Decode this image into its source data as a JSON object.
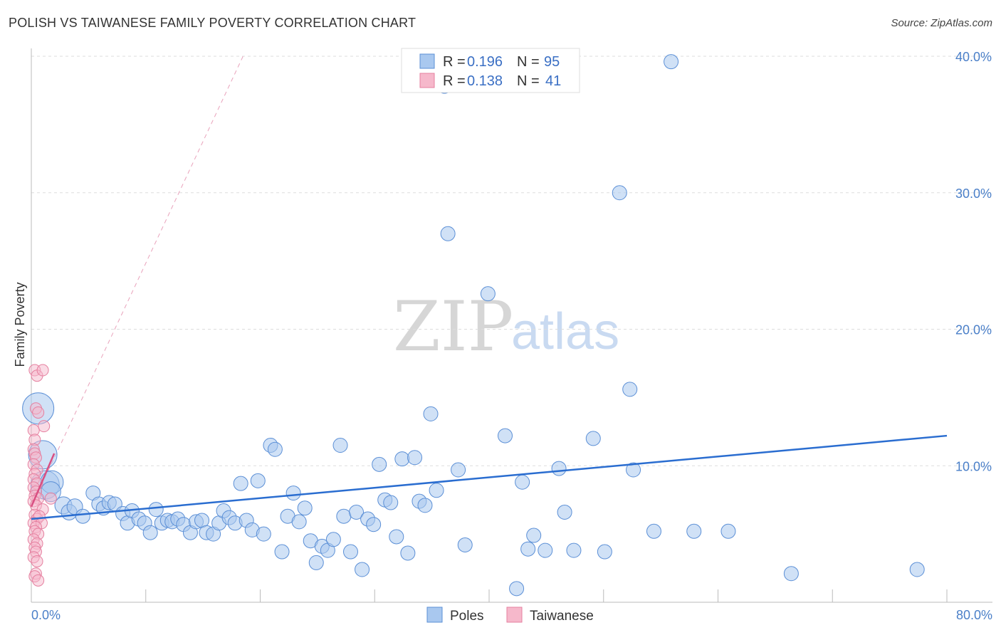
{
  "title": "POLISH VS TAIWANESE FAMILY POVERTY CORRELATION CHART",
  "source": "Source: ZipAtlas.com",
  "watermark": {
    "part1": "ZIP",
    "part2": "atlas"
  },
  "colors": {
    "poles_fill": "#a9c8ef",
    "poles_stroke": "#5b8fd6",
    "poles_line": "#2a6dd0",
    "taiwanese_fill": "#f6b8cb",
    "taiwanese_stroke": "#e57f9f",
    "taiwanese_line": "#d94f82",
    "grid": "#dddddd",
    "tick_label": "#4a7fc8"
  },
  "legend": {
    "rows": [
      {
        "r_label": "R = ",
        "r_value": "0.196",
        "n_label": "N = ",
        "n_value": "95",
        "series": "poles"
      },
      {
        "r_label": "R = ",
        "r_value": "0.138",
        "n_label": "N = ",
        "n_value": "41",
        "series": "taiwanese"
      }
    ]
  },
  "chart_data": {
    "type": "scatter",
    "title": "POLISH VS TAIWANESE FAMILY POVERTY CORRELATION CHART",
    "xlabel": "",
    "ylabel": "Family Poverty",
    "xlim": [
      0,
      80
    ],
    "ylim": [
      0,
      40
    ],
    "x_tick_labels": [
      "0.0%",
      "80.0%"
    ],
    "y_ticks": [
      10,
      20,
      30,
      40
    ],
    "y_tick_labels": [
      "10.0%",
      "20.0%",
      "30.0%",
      "40.0%"
    ],
    "grid": "horizontal dashed",
    "legend_position": "top-center and bottom",
    "series": [
      {
        "name": "Poles",
        "trend": {
          "x": [
            0,
            80
          ],
          "y": [
            6.1,
            12.2
          ]
        },
        "points": [
          [
            0.6,
            14.2
          ],
          [
            1.0,
            10.8
          ],
          [
            1.2,
            8.6
          ],
          [
            1.8,
            8.8
          ],
          [
            1.7,
            8.1
          ],
          [
            2.8,
            7.1
          ],
          [
            3.3,
            6.6
          ],
          [
            3.8,
            7.0
          ],
          [
            4.5,
            6.3
          ],
          [
            5.4,
            8.0
          ],
          [
            5.9,
            7.2
          ],
          [
            6.3,
            6.9
          ],
          [
            6.8,
            7.3
          ],
          [
            7.3,
            7.2
          ],
          [
            8.0,
            6.5
          ],
          [
            8.4,
            5.8
          ],
          [
            8.8,
            6.7
          ],
          [
            9.4,
            6.1
          ],
          [
            9.9,
            5.8
          ],
          [
            10.4,
            5.1
          ],
          [
            10.9,
            6.8
          ],
          [
            11.4,
            5.8
          ],
          [
            11.9,
            6.0
          ],
          [
            12.3,
            5.9
          ],
          [
            12.8,
            6.1
          ],
          [
            13.3,
            5.7
          ],
          [
            13.9,
            5.1
          ],
          [
            14.4,
            5.9
          ],
          [
            14.9,
            6.0
          ],
          [
            15.3,
            5.1
          ],
          [
            15.9,
            5.0
          ],
          [
            16.4,
            5.8
          ],
          [
            16.8,
            6.7
          ],
          [
            17.3,
            6.2
          ],
          [
            17.8,
            5.8
          ],
          [
            18.3,
            8.7
          ],
          [
            18.8,
            6.0
          ],
          [
            19.3,
            5.3
          ],
          [
            19.8,
            8.9
          ],
          [
            20.3,
            5.0
          ],
          [
            20.9,
            11.5
          ],
          [
            21.3,
            11.2
          ],
          [
            21.9,
            3.7
          ],
          [
            22.4,
            6.3
          ],
          [
            22.9,
            8.0
          ],
          [
            23.4,
            5.9
          ],
          [
            23.9,
            6.9
          ],
          [
            24.4,
            4.5
          ],
          [
            24.9,
            2.9
          ],
          [
            25.4,
            4.1
          ],
          [
            25.9,
            3.8
          ],
          [
            26.4,
            4.6
          ],
          [
            27.0,
            11.5
          ],
          [
            27.3,
            6.3
          ],
          [
            27.9,
            3.7
          ],
          [
            28.4,
            6.6
          ],
          [
            28.9,
            2.4
          ],
          [
            29.4,
            6.1
          ],
          [
            29.9,
            5.7
          ],
          [
            30.4,
            10.1
          ],
          [
            30.9,
            7.5
          ],
          [
            31.4,
            7.3
          ],
          [
            31.9,
            4.8
          ],
          [
            32.4,
            10.5
          ],
          [
            32.9,
            3.6
          ],
          [
            33.5,
            10.6
          ],
          [
            33.9,
            7.4
          ],
          [
            34.4,
            7.1
          ],
          [
            34.9,
            13.8
          ],
          [
            35.4,
            8.2
          ],
          [
            36.1,
            37.8
          ],
          [
            36.4,
            27.0
          ],
          [
            37.3,
            9.7
          ],
          [
            37.9,
            4.2
          ],
          [
            39.9,
            22.6
          ],
          [
            41.4,
            12.2
          ],
          [
            42.4,
            1.0
          ],
          [
            42.9,
            8.8
          ],
          [
            43.4,
            3.9
          ],
          [
            43.9,
            4.9
          ],
          [
            44.9,
            3.8
          ],
          [
            46.1,
            9.8
          ],
          [
            46.6,
            6.6
          ],
          [
            47.4,
            3.8
          ],
          [
            49.1,
            12.0
          ],
          [
            50.1,
            3.7
          ],
          [
            51.4,
            30.0
          ],
          [
            52.3,
            15.6
          ],
          [
            52.6,
            9.7
          ],
          [
            54.4,
            5.2
          ],
          [
            55.9,
            39.6
          ],
          [
            57.9,
            5.2
          ],
          [
            60.9,
            5.2
          ],
          [
            66.4,
            2.1
          ],
          [
            77.4,
            2.4
          ]
        ],
        "sizes": [
          22,
          20,
          20,
          16,
          14,
          12,
          11,
          11,
          10,
          10,
          10,
          10,
          10,
          10,
          10,
          10,
          10,
          10,
          10,
          10,
          10,
          10,
          10,
          10,
          10,
          10,
          10,
          10,
          10,
          10,
          10,
          10,
          10,
          10,
          10,
          10,
          10,
          10,
          10,
          10,
          10,
          10,
          10,
          10,
          10,
          10,
          10,
          10,
          10,
          10,
          10,
          10,
          10,
          10,
          10,
          10,
          10,
          10,
          10,
          10,
          10,
          10,
          10,
          10,
          10,
          10,
          10,
          10,
          10,
          10,
          10,
          10,
          10,
          10,
          10,
          10,
          10,
          10,
          10,
          10,
          10,
          10,
          10,
          10,
          10,
          10,
          10,
          10,
          10,
          10,
          10,
          10,
          10,
          10,
          10
        ]
      },
      {
        "name": "Taiwanese",
        "trend": {
          "x": [
            0,
            2.0
          ],
          "y": [
            7.0,
            10.9
          ],
          "extended": {
            "x": [
              0,
              18.5
            ],
            "y": [
              7.0,
              40.0
            ]
          }
        },
        "points": [
          [
            0.3,
            17.0
          ],
          [
            0.5,
            16.6
          ],
          [
            1.0,
            17.0
          ],
          [
            0.4,
            14.2
          ],
          [
            0.6,
            13.9
          ],
          [
            1.1,
            12.9
          ],
          [
            0.2,
            12.6
          ],
          [
            0.3,
            11.9
          ],
          [
            0.2,
            11.2
          ],
          [
            0.3,
            10.9
          ],
          [
            0.4,
            10.6
          ],
          [
            0.2,
            10.1
          ],
          [
            0.5,
            9.7
          ],
          [
            0.3,
            9.4
          ],
          [
            0.2,
            9.0
          ],
          [
            0.5,
            8.7
          ],
          [
            0.2,
            8.4
          ],
          [
            0.4,
            8.1
          ],
          [
            0.3,
            7.8
          ],
          [
            0.6,
            7.6
          ],
          [
            0.2,
            7.4
          ],
          [
            0.4,
            7.1
          ],
          [
            1.0,
            6.8
          ],
          [
            1.7,
            7.6
          ],
          [
            0.3,
            6.4
          ],
          [
            0.5,
            6.1
          ],
          [
            0.7,
            6.3
          ],
          [
            0.2,
            5.8
          ],
          [
            0.9,
            5.8
          ],
          [
            0.4,
            5.5
          ],
          [
            0.3,
            5.2
          ],
          [
            0.6,
            5.0
          ],
          [
            0.2,
            4.6
          ],
          [
            0.5,
            4.3
          ],
          [
            0.3,
            4.0
          ],
          [
            0.4,
            3.7
          ],
          [
            0.2,
            3.3
          ],
          [
            0.5,
            3.0
          ],
          [
            0.4,
            2.1
          ],
          [
            0.3,
            1.9
          ],
          [
            0.6,
            1.6
          ]
        ]
      }
    ]
  },
  "bottom_legend": {
    "items": [
      "Poles",
      "Taiwanese"
    ]
  }
}
